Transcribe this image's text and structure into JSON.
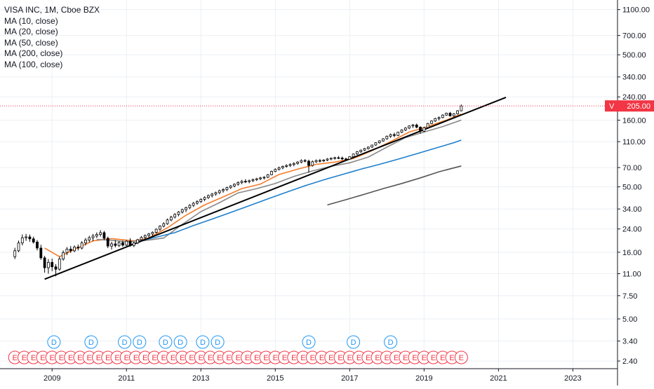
{
  "header": {
    "symbol_title": "VISA INC, 1M, Cboe BZX",
    "indicators": [
      "MA (10, close)",
      "MA (20, close)",
      "MA (50, close)",
      "MA (200, close)",
      "MA (100, close)"
    ]
  },
  "price_label": {
    "symbol": "V",
    "value": "205.00",
    "color": "#f23645"
  },
  "colors": {
    "ma10": "#f57c2a",
    "ma20": "#888888",
    "ma50": "#1e7fcb",
    "ma100": "#555555",
    "trendline": "#000000",
    "event_red": "#f23645",
    "event_blue": "#2196f3",
    "grid": "#eceff3"
  },
  "chart_data": {
    "type": "candlestick",
    "title": "VISA INC, 1M, Cboe BZX",
    "y_scale": "log",
    "ylim": [
      2.1,
      1300
    ],
    "xlim": [
      2007.6,
      2024.2
    ],
    "x_tick_labels": [
      "2009",
      "2011",
      "2013",
      "2015",
      "2017",
      "2019",
      "2021",
      "2023"
    ],
    "y_tick_labels": [
      "1100.00",
      "700.00",
      "500.00",
      "340.00",
      "240.00",
      "160.00",
      "110.00",
      "70.00",
      "50.00",
      "34.00",
      "24.00",
      "16.00",
      "11.00",
      "7.50",
      "5.00",
      "3.40",
      "2.40"
    ],
    "last_price": 205.0,
    "series": [
      {
        "name": "MA (10, close)",
        "points": [
          [
            2008.8,
            17.2
          ],
          [
            2009.2,
            14.8
          ],
          [
            2009.6,
            16.8
          ],
          [
            2010.1,
            19.5
          ],
          [
            2010.6,
            20.3
          ],
          [
            2011.2,
            19.5
          ],
          [
            2011.6,
            20.5
          ],
          [
            2012.1,
            24.5
          ],
          [
            2012.6,
            30.5
          ],
          [
            2013.1,
            36.5
          ],
          [
            2013.6,
            42.0
          ],
          [
            2014.1,
            48.5
          ],
          [
            2014.6,
            52.5
          ],
          [
            2015.1,
            62.0
          ],
          [
            2015.6,
            68.0
          ],
          [
            2016.1,
            74.0
          ],
          [
            2016.6,
            77.0
          ],
          [
            2017.1,
            82.0
          ],
          [
            2017.6,
            94.0
          ],
          [
            2018.1,
            110.0
          ],
          [
            2018.6,
            130.0
          ],
          [
            2019.0,
            140.0
          ],
          [
            2019.6,
            160.0
          ],
          [
            2020.0,
            178.0
          ]
        ]
      },
      {
        "name": "MA (20, close)",
        "points": [
          [
            2010.2,
            20.0
          ],
          [
            2010.6,
            19.7
          ],
          [
            2011.0,
            19.2
          ],
          [
            2011.5,
            19.6
          ],
          [
            2012.0,
            20.5
          ],
          [
            2012.5,
            26.0
          ],
          [
            2013.0,
            32.5
          ],
          [
            2013.5,
            38.0
          ],
          [
            2014.0,
            45.0
          ],
          [
            2014.5,
            48.5
          ],
          [
            2015.0,
            53.0
          ],
          [
            2015.5,
            60.0
          ],
          [
            2016.0,
            66.0
          ],
          [
            2016.5,
            71.5
          ],
          [
            2017.0,
            76.0
          ],
          [
            2017.5,
            84.0
          ],
          [
            2018.0,
            100.0
          ],
          [
            2018.5,
            118.0
          ],
          [
            2019.0,
            130.0
          ],
          [
            2019.5,
            143.0
          ],
          [
            2020.0,
            160.0
          ]
        ]
      },
      {
        "name": "MA (50, close)",
        "points": [
          [
            2011.3,
            19.3
          ],
          [
            2011.8,
            20.8
          ],
          [
            2012.3,
            22.5
          ],
          [
            2012.8,
            25.5
          ],
          [
            2013.3,
            28.5
          ],
          [
            2013.8,
            32.0
          ],
          [
            2014.3,
            36.0
          ],
          [
            2014.8,
            40.5
          ],
          [
            2015.3,
            45.5
          ],
          [
            2015.8,
            51.0
          ],
          [
            2016.3,
            56.5
          ],
          [
            2016.8,
            62.0
          ],
          [
            2017.3,
            68.0
          ],
          [
            2017.8,
            74.0
          ],
          [
            2018.3,
            81.0
          ],
          [
            2018.8,
            89.0
          ],
          [
            2019.3,
            98.0
          ],
          [
            2019.8,
            108.0
          ],
          [
            2020.0,
            113.0
          ]
        ]
      },
      {
        "name": "MA (100, close)",
        "points": [
          [
            2016.4,
            36.5
          ],
          [
            2016.9,
            40.0
          ],
          [
            2017.4,
            44.0
          ],
          [
            2017.9,
            48.5
          ],
          [
            2018.4,
            53.0
          ],
          [
            2018.9,
            58.5
          ],
          [
            2019.4,
            65.0
          ],
          [
            2020.0,
            72.0
          ]
        ]
      },
      {
        "name": "MA (200, close)",
        "points": []
      },
      {
        "name": "trendline",
        "points": [
          [
            2008.8,
            10.0
          ],
          [
            2021.2,
            238.0
          ]
        ]
      }
    ],
    "candles": [
      [
        2008.0,
        14.8,
        17.3,
        14.2,
        16.4
      ],
      [
        2008.1,
        16.4,
        19.6,
        16.0,
        18.8
      ],
      [
        2008.2,
        18.8,
        21.8,
        18.0,
        20.6
      ],
      [
        2008.3,
        20.6,
        22.0,
        19.5,
        20.9
      ],
      [
        2008.4,
        20.9,
        21.8,
        19.2,
        20.2
      ],
      [
        2008.5,
        20.2,
        21.0,
        18.6,
        19.1
      ],
      [
        2008.6,
        19.1,
        19.8,
        16.5,
        17.2
      ],
      [
        2008.7,
        17.2,
        18.2,
        14.0,
        14.5
      ],
      [
        2008.8,
        14.5,
        15.0,
        11.2,
        12.2
      ],
      [
        2008.9,
        12.2,
        14.2,
        11.0,
        13.4
      ],
      [
        2009.0,
        13.4,
        14.3,
        11.5,
        12.4
      ],
      [
        2009.1,
        12.4,
        13.0,
        10.5,
        11.9
      ],
      [
        2009.2,
        11.9,
        14.8,
        11.6,
        14.2
      ],
      [
        2009.3,
        14.2,
        16.5,
        13.8,
        15.9
      ],
      [
        2009.4,
        15.9,
        17.5,
        15.2,
        16.9
      ],
      [
        2009.5,
        16.9,
        17.8,
        15.8,
        16.4
      ],
      [
        2009.6,
        16.4,
        18.0,
        16.0,
        17.5
      ],
      [
        2009.7,
        17.5,
        18.3,
        16.5,
        17.2
      ],
      [
        2009.8,
        17.2,
        19.4,
        16.8,
        18.8
      ],
      [
        2009.9,
        18.8,
        20.5,
        18.0,
        19.8
      ],
      [
        2010.0,
        19.8,
        21.3,
        19.0,
        20.6
      ],
      [
        2010.1,
        20.6,
        22.0,
        19.4,
        21.2
      ],
      [
        2010.2,
        21.2,
        22.6,
        20.5,
        21.8
      ],
      [
        2010.3,
        21.8,
        23.5,
        21.0,
        22.5
      ],
      [
        2010.4,
        22.5,
        23.2,
        19.8,
        20.4
      ],
      [
        2010.5,
        20.4,
        21.0,
        17.2,
        17.8
      ],
      [
        2010.6,
        17.8,
        19.2,
        16.8,
        18.5
      ],
      [
        2010.7,
        18.5,
        19.8,
        17.4,
        18.0
      ],
      [
        2010.8,
        18.0,
        19.4,
        17.5,
        18.9
      ],
      [
        2010.9,
        18.9,
        19.6,
        17.6,
        18.1
      ],
      [
        2011.0,
        18.1,
        19.8,
        17.8,
        19.4
      ],
      [
        2011.1,
        19.4,
        20.4,
        17.6,
        18.0
      ],
      [
        2011.2,
        18.0,
        19.2,
        17.5,
        18.8
      ],
      [
        2011.3,
        18.8,
        20.2,
        18.4,
        19.9
      ],
      [
        2011.4,
        19.9,
        21.2,
        19.4,
        20.7
      ],
      [
        2011.5,
        20.7,
        21.8,
        19.8,
        21.4
      ],
      [
        2011.6,
        21.4,
        22.4,
        20.8,
        22.0
      ],
      [
        2011.7,
        22.0,
        23.0,
        21.2,
        22.6
      ],
      [
        2011.8,
        22.6,
        24.2,
        22.2,
        23.9
      ],
      [
        2011.9,
        23.9,
        25.6,
        23.2,
        25.2
      ],
      [
        2012.0,
        25.2,
        27.0,
        24.6,
        26.3
      ],
      [
        2012.1,
        26.3,
        28.8,
        25.8,
        28.1
      ],
      [
        2012.2,
        28.1,
        30.2,
        27.4,
        29.5
      ],
      [
        2012.3,
        29.5,
        31.6,
        28.8,
        30.9
      ],
      [
        2012.4,
        30.9,
        32.8,
        29.9,
        32.2
      ],
      [
        2012.5,
        32.2,
        34.2,
        31.4,
        33.6
      ],
      [
        2012.6,
        33.6,
        35.4,
        32.2,
        34.8
      ],
      [
        2012.7,
        34.8,
        37.0,
        33.9,
        36.2
      ],
      [
        2012.8,
        36.2,
        38.4,
        35.2,
        37.6
      ],
      [
        2012.9,
        37.6,
        39.6,
        36.6,
        38.7
      ],
      [
        2013.0,
        38.7,
        41.0,
        37.8,
        40.2
      ],
      [
        2013.1,
        40.2,
        42.4,
        39.0,
        41.5
      ],
      [
        2013.2,
        41.5,
        43.8,
        40.4,
        42.9
      ],
      [
        2013.3,
        42.9,
        45.0,
        41.6,
        44.1
      ],
      [
        2013.4,
        44.1,
        46.0,
        42.8,
        45.2
      ],
      [
        2013.5,
        45.2,
        47.6,
        44.0,
        46.8
      ],
      [
        2013.6,
        46.8,
        48.8,
        45.2,
        47.7
      ],
      [
        2013.7,
        47.7,
        50.2,
        46.4,
        49.3
      ],
      [
        2013.8,
        49.3,
        51.6,
        48.2,
        50.8
      ],
      [
        2013.9,
        50.8,
        53.2,
        49.6,
        52.3
      ],
      [
        2014.0,
        52.3,
        55.0,
        51.0,
        53.8
      ],
      [
        2014.1,
        53.8,
        56.4,
        52.4,
        55.1
      ],
      [
        2014.2,
        55.1,
        57.2,
        53.4,
        54.8
      ],
      [
        2014.3,
        54.8,
        56.8,
        53.2,
        55.6
      ],
      [
        2014.4,
        55.6,
        57.8,
        54.4,
        56.7
      ],
      [
        2014.5,
        56.7,
        58.6,
        55.4,
        57.6
      ],
      [
        2014.6,
        57.6,
        59.6,
        56.2,
        58.4
      ],
      [
        2014.7,
        58.4,
        60.2,
        56.8,
        59.1
      ],
      [
        2014.8,
        59.1,
        62.6,
        58.2,
        61.8
      ],
      [
        2014.9,
        61.8,
        66.4,
        61.2,
        65.5
      ],
      [
        2015.0,
        65.5,
        69.0,
        64.6,
        67.8
      ],
      [
        2015.1,
        67.8,
        71.2,
        66.4,
        69.8
      ],
      [
        2015.2,
        69.8,
        72.6,
        68.0,
        71.4
      ],
      [
        2015.3,
        71.4,
        74.2,
        69.8,
        72.6
      ],
      [
        2015.4,
        72.6,
        75.4,
        70.8,
        73.8
      ],
      [
        2015.5,
        73.8,
        76.8,
        71.6,
        75.2
      ],
      [
        2015.6,
        75.2,
        78.4,
        73.6,
        77.0
      ],
      [
        2015.7,
        77.0,
        80.8,
        75.4,
        79.1
      ],
      [
        2015.8,
        79.1,
        81.2,
        76.8,
        78.3
      ],
      [
        2015.9,
        78.3,
        80.4,
        64.0,
        72.6
      ],
      [
        2016.0,
        72.6,
        79.2,
        71.2,
        77.4
      ],
      [
        2016.1,
        77.4,
        80.6,
        75.8,
        79.1
      ],
      [
        2016.2,
        79.1,
        81.4,
        76.6,
        78.6
      ],
      [
        2016.3,
        78.6,
        81.0,
        77.0,
        79.8
      ],
      [
        2016.4,
        79.8,
        82.6,
        78.4,
        81.2
      ],
      [
        2016.5,
        81.2,
        83.4,
        79.6,
        82.4
      ],
      [
        2016.6,
        82.4,
        84.6,
        80.4,
        83.1
      ],
      [
        2016.7,
        83.1,
        85.6,
        81.2,
        82.7
      ],
      [
        2016.8,
        82.7,
        84.8,
        79.6,
        81.4
      ],
      [
        2016.9,
        81.4,
        83.2,
        78.6,
        80.9
      ],
      [
        2017.0,
        80.9,
        85.2,
        80.2,
        84.6
      ],
      [
        2017.1,
        84.6,
        89.4,
        83.6,
        88.7
      ],
      [
        2017.2,
        88.7,
        93.4,
        87.4,
        92.2
      ],
      [
        2017.3,
        92.2,
        96.0,
        90.6,
        94.8
      ],
      [
        2017.4,
        94.8,
        98.6,
        93.4,
        97.5
      ],
      [
        2017.5,
        97.5,
        101.2,
        95.8,
        100.1
      ],
      [
        2017.6,
        100.1,
        104.4,
        98.6,
        103.6
      ],
      [
        2017.7,
        103.6,
        108.8,
        102.4,
        107.9
      ],
      [
        2017.8,
        107.9,
        112.6,
        106.2,
        111.4
      ],
      [
        2017.9,
        111.4,
        116.8,
        109.8,
        115.6
      ],
      [
        2018.0,
        115.6,
        122.4,
        113.6,
        120.9
      ],
      [
        2018.1,
        120.9,
        126.8,
        117.4,
        124.3
      ],
      [
        2018.2,
        124.3,
        128.6,
        118.6,
        122.5
      ],
      [
        2018.3,
        122.5,
        130.8,
        121.2,
        129.6
      ],
      [
        2018.4,
        129.6,
        136.4,
        127.8,
        134.9
      ],
      [
        2018.5,
        134.9,
        141.6,
        132.4,
        139.4
      ],
      [
        2018.6,
        139.4,
        146.2,
        136.8,
        144.6
      ],
      [
        2018.7,
        144.6,
        149.8,
        139.6,
        147.2
      ],
      [
        2018.8,
        147.2,
        150.6,
        139.0,
        141.5
      ],
      [
        2018.9,
        141.5,
        143.8,
        126.4,
        131.8
      ],
      [
        2019.0,
        131.8,
        142.6,
        130.2,
        140.5
      ],
      [
        2019.1,
        140.5,
        152.6,
        138.4,
        150.9
      ],
      [
        2019.2,
        150.9,
        159.2,
        149.4,
        157.6
      ],
      [
        2019.3,
        157.6,
        166.8,
        155.2,
        164.5
      ],
      [
        2019.4,
        164.5,
        170.6,
        159.4,
        167.3
      ],
      [
        2019.5,
        167.3,
        177.2,
        165.4,
        174.8
      ],
      [
        2019.6,
        174.8,
        182.4,
        172.6,
        180.6
      ],
      [
        2019.7,
        180.6,
        184.6,
        170.4,
        172.4
      ],
      [
        2019.8,
        172.4,
        180.8,
        169.8,
        178.9
      ],
      [
        2019.9,
        178.9,
        190.6,
        176.2,
        188.4
      ],
      [
        2020.0,
        188.4,
        210.2,
        186.6,
        205.0
      ]
    ],
    "events": {
      "earnings_label": "E",
      "dividend_label": "D",
      "earnings_x": [
        2008.0,
        2008.25,
        2008.5,
        2008.75,
        2009.0,
        2009.25,
        2009.5,
        2009.75,
        2010.0,
        2010.25,
        2010.5,
        2010.75,
        2011.0,
        2011.25,
        2011.5,
        2011.75,
        2012.0,
        2012.25,
        2012.5,
        2012.75,
        2013.0,
        2013.25,
        2013.5,
        2013.75,
        2014.0,
        2014.25,
        2014.5,
        2014.75,
        2015.0,
        2015.25,
        2015.5,
        2015.75,
        2016.0,
        2016.25,
        2016.5,
        2016.75,
        2017.0,
        2017.25,
        2017.5,
        2017.75,
        2018.0,
        2018.25,
        2018.5,
        2018.75,
        2019.0,
        2019.25,
        2019.5,
        2019.75,
        2020.0
      ],
      "dividend_x": [
        2009.05,
        2010.05,
        2010.95,
        2011.35,
        2012.05,
        2012.45,
        2013.05,
        2013.45,
        2015.9,
        2017.1,
        2018.1
      ]
    }
  }
}
